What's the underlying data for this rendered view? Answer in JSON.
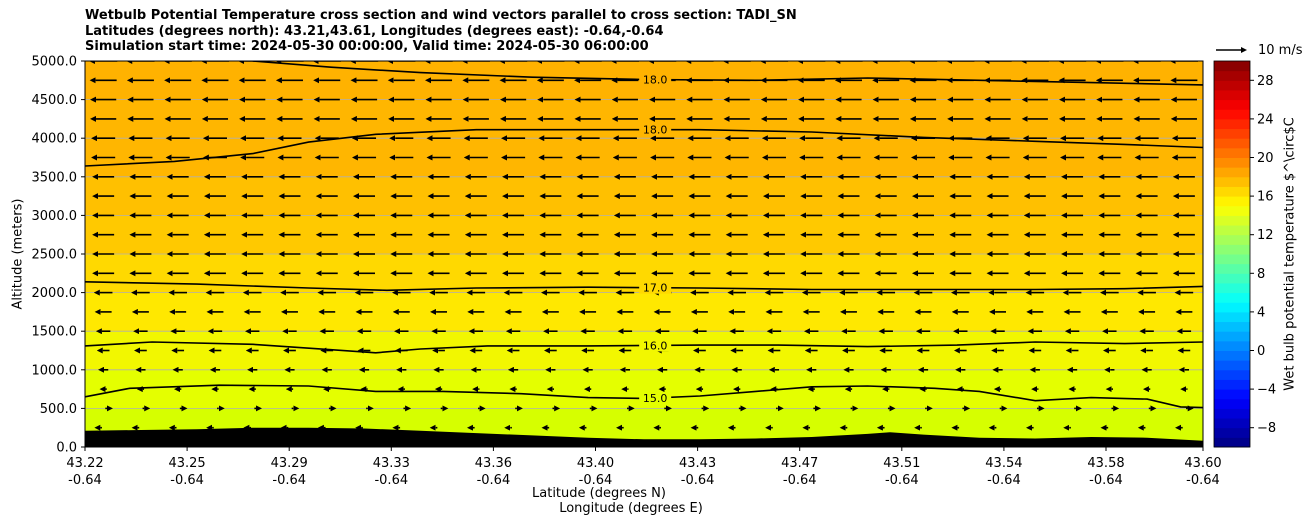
{
  "title_lines": [
    "Wetbulb Potential Temperature cross section and wind vectors parallel to cross section: TADI_SN",
    "Latitudes (degrees north): 43.21,43.61, Longitudes (degrees east): -0.64,-0.64",
    "Simulation start time: 2024-05-30 00:00:00, Valid time: 2024-05-30 06:00:00"
  ],
  "chart_data": {
    "type": "heatmap",
    "x_axis": {
      "label_line1": "Latitude (degrees N)",
      "label_line2": "Longitude (degrees E)",
      "ticks": [
        {
          "lat": "43.22",
          "lon": "-0.64"
        },
        {
          "lat": "43.25",
          "lon": "-0.64"
        },
        {
          "lat": "43.29",
          "lon": "-0.64"
        },
        {
          "lat": "43.33",
          "lon": "-0.64"
        },
        {
          "lat": "43.36",
          "lon": "-0.64"
        },
        {
          "lat": "43.40",
          "lon": "-0.64"
        },
        {
          "lat": "43.43",
          "lon": "-0.64"
        },
        {
          "lat": "43.47",
          "lon": "-0.64"
        },
        {
          "lat": "43.51",
          "lon": "-0.64"
        },
        {
          "lat": "43.54",
          "lon": "-0.64"
        },
        {
          "lat": "43.58",
          "lon": "-0.64"
        },
        {
          "lat": "43.60",
          "lon": "-0.64"
        }
      ]
    },
    "y_axis": {
      "label": "Altitude (meters)",
      "range": [
        0,
        5000
      ],
      "ticks": [
        "0.0",
        "500.0",
        "1000.0",
        "1500.0",
        "2000.0",
        "2500.0",
        "3000.0",
        "3500.0",
        "4000.0",
        "4500.0",
        "5000.0"
      ]
    },
    "colorbar": {
      "label": "Wet bulb potential temperature $^\\circ$C",
      "range": [
        -10,
        30
      ],
      "ticks": [
        "−8",
        "−4",
        "0",
        "4",
        "8",
        "12",
        "16",
        "20",
        "24",
        "28"
      ]
    },
    "field_bands": [
      {
        "from": 0,
        "to": 500,
        "value": 14.8,
        "color": "#d6ff00"
      },
      {
        "from": 500,
        "to": 1000,
        "value": 15.2,
        "color": "#e4ff00"
      },
      {
        "from": 1000,
        "to": 1500,
        "value": 16.0,
        "color": "#f2f700"
      },
      {
        "from": 1500,
        "to": 2000,
        "value": 16.6,
        "color": "#ffe800"
      },
      {
        "from": 2000,
        "to": 2500,
        "value": 17.0,
        "color": "#ffd900"
      },
      {
        "from": 2500,
        "to": 3000,
        "value": 17.4,
        "color": "#ffc900"
      },
      {
        "from": 3000,
        "to": 3500,
        "value": 17.7,
        "color": "#ffc000"
      },
      {
        "from": 3500,
        "to": 4500,
        "value": 18.0,
        "color": "#ffb600"
      },
      {
        "from": 4500,
        "to": 5000,
        "value": 18.2,
        "color": "#ffb200"
      }
    ],
    "contours": [
      {
        "label": "15.0",
        "level": 15.0,
        "points": [
          [
            0,
            650
          ],
          [
            0.04,
            760
          ],
          [
            0.12,
            800
          ],
          [
            0.2,
            790
          ],
          [
            0.26,
            720
          ],
          [
            0.32,
            720
          ],
          [
            0.39,
            690
          ],
          [
            0.45,
            640
          ],
          [
            0.5,
            630
          ],
          [
            0.55,
            660
          ],
          [
            0.6,
            720
          ],
          [
            0.65,
            780
          ],
          [
            0.7,
            790
          ],
          [
            0.76,
            760
          ],
          [
            0.8,
            720
          ],
          [
            0.85,
            600
          ],
          [
            0.9,
            640
          ],
          [
            0.95,
            620
          ],
          [
            0.98,
            520
          ],
          [
            1,
            510
          ]
        ],
        "label_at": 0.51
      },
      {
        "label": "16.0",
        "level": 16.0,
        "points": [
          [
            0,
            1310
          ],
          [
            0.06,
            1360
          ],
          [
            0.15,
            1330
          ],
          [
            0.22,
            1260
          ],
          [
            0.26,
            1220
          ],
          [
            0.3,
            1270
          ],
          [
            0.36,
            1310
          ],
          [
            0.45,
            1310
          ],
          [
            0.55,
            1320
          ],
          [
            0.62,
            1320
          ],
          [
            0.7,
            1300
          ],
          [
            0.78,
            1320
          ],
          [
            0.85,
            1360
          ],
          [
            0.93,
            1340
          ],
          [
            1,
            1360
          ]
        ],
        "label_at": 0.51
      },
      {
        "label": "17.0",
        "level": 17.0,
        "points": [
          [
            0,
            2140
          ],
          [
            0.1,
            2110
          ],
          [
            0.2,
            2060
          ],
          [
            0.27,
            2030
          ],
          [
            0.35,
            2060
          ],
          [
            0.45,
            2070
          ],
          [
            0.55,
            2060
          ],
          [
            0.65,
            2040
          ],
          [
            0.75,
            2040
          ],
          [
            0.85,
            2040
          ],
          [
            0.93,
            2050
          ],
          [
            1,
            2080
          ]
        ],
        "label_at": 0.51
      },
      {
        "label": "18.0",
        "level": 18.0,
        "points": [
          [
            0,
            3640
          ],
          [
            0.08,
            3700
          ],
          [
            0.15,
            3800
          ],
          [
            0.2,
            3950
          ],
          [
            0.26,
            4050
          ],
          [
            0.35,
            4110
          ],
          [
            0.45,
            4110
          ],
          [
            0.55,
            4110
          ],
          [
            0.65,
            4080
          ],
          [
            0.75,
            4010
          ],
          [
            0.85,
            3960
          ],
          [
            0.93,
            3920
          ],
          [
            1,
            3880
          ]
        ],
        "label_at": 0.51
      },
      {
        "label": "18.0",
        "level": 18.0,
        "points": [
          [
            0.15,
            5000
          ],
          [
            0.22,
            4920
          ],
          [
            0.3,
            4850
          ],
          [
            0.4,
            4790
          ],
          [
            0.5,
            4760
          ],
          [
            0.6,
            4750
          ],
          [
            0.7,
            4780
          ],
          [
            0.8,
            4750
          ],
          [
            0.9,
            4720
          ],
          [
            1,
            4690
          ]
        ],
        "label_at": 0.51
      }
    ],
    "terrain": {
      "color": "#000000",
      "height_m": [
        [
          0,
          210
        ],
        [
          0.05,
          220
        ],
        [
          0.1,
          230
        ],
        [
          0.15,
          250
        ],
        [
          0.2,
          250
        ],
        [
          0.25,
          240
        ],
        [
          0.3,
          210
        ],
        [
          0.35,
          180
        ],
        [
          0.4,
          150
        ],
        [
          0.45,
          120
        ],
        [
          0.5,
          100
        ],
        [
          0.55,
          100
        ],
        [
          0.6,
          110
        ],
        [
          0.65,
          130
        ],
        [
          0.7,
          170
        ],
        [
          0.72,
          190
        ],
        [
          0.75,
          160
        ],
        [
          0.8,
          120
        ],
        [
          0.85,
          110
        ],
        [
          0.9,
          130
        ],
        [
          0.95,
          120
        ],
        [
          1,
          80
        ]
      ]
    },
    "wind_vectors": {
      "key_label": "10 m/s",
      "key_speed_ms": 10,
      "columns": 30,
      "levels_m": [
        250,
        500,
        750,
        1000,
        1250,
        1500,
        1750,
        2000,
        2250,
        2500,
        2750,
        3000,
        3250,
        3500,
        3750,
        4000,
        4250,
        4500,
        4750,
        5000
      ],
      "u_by_level_ms": [
        0.8,
        -0.8,
        -1.5,
        -2.2,
        -2.8,
        -3.2,
        -3.8,
        -4.2,
        -5,
        -5,
        -5,
        -5,
        -5,
        -5,
        -5.5,
        -5.5,
        -6,
        -6,
        -6.2,
        -6.5
      ],
      "color": "#000000"
    },
    "grid": true,
    "gridline_color": "#b0b0b0"
  }
}
